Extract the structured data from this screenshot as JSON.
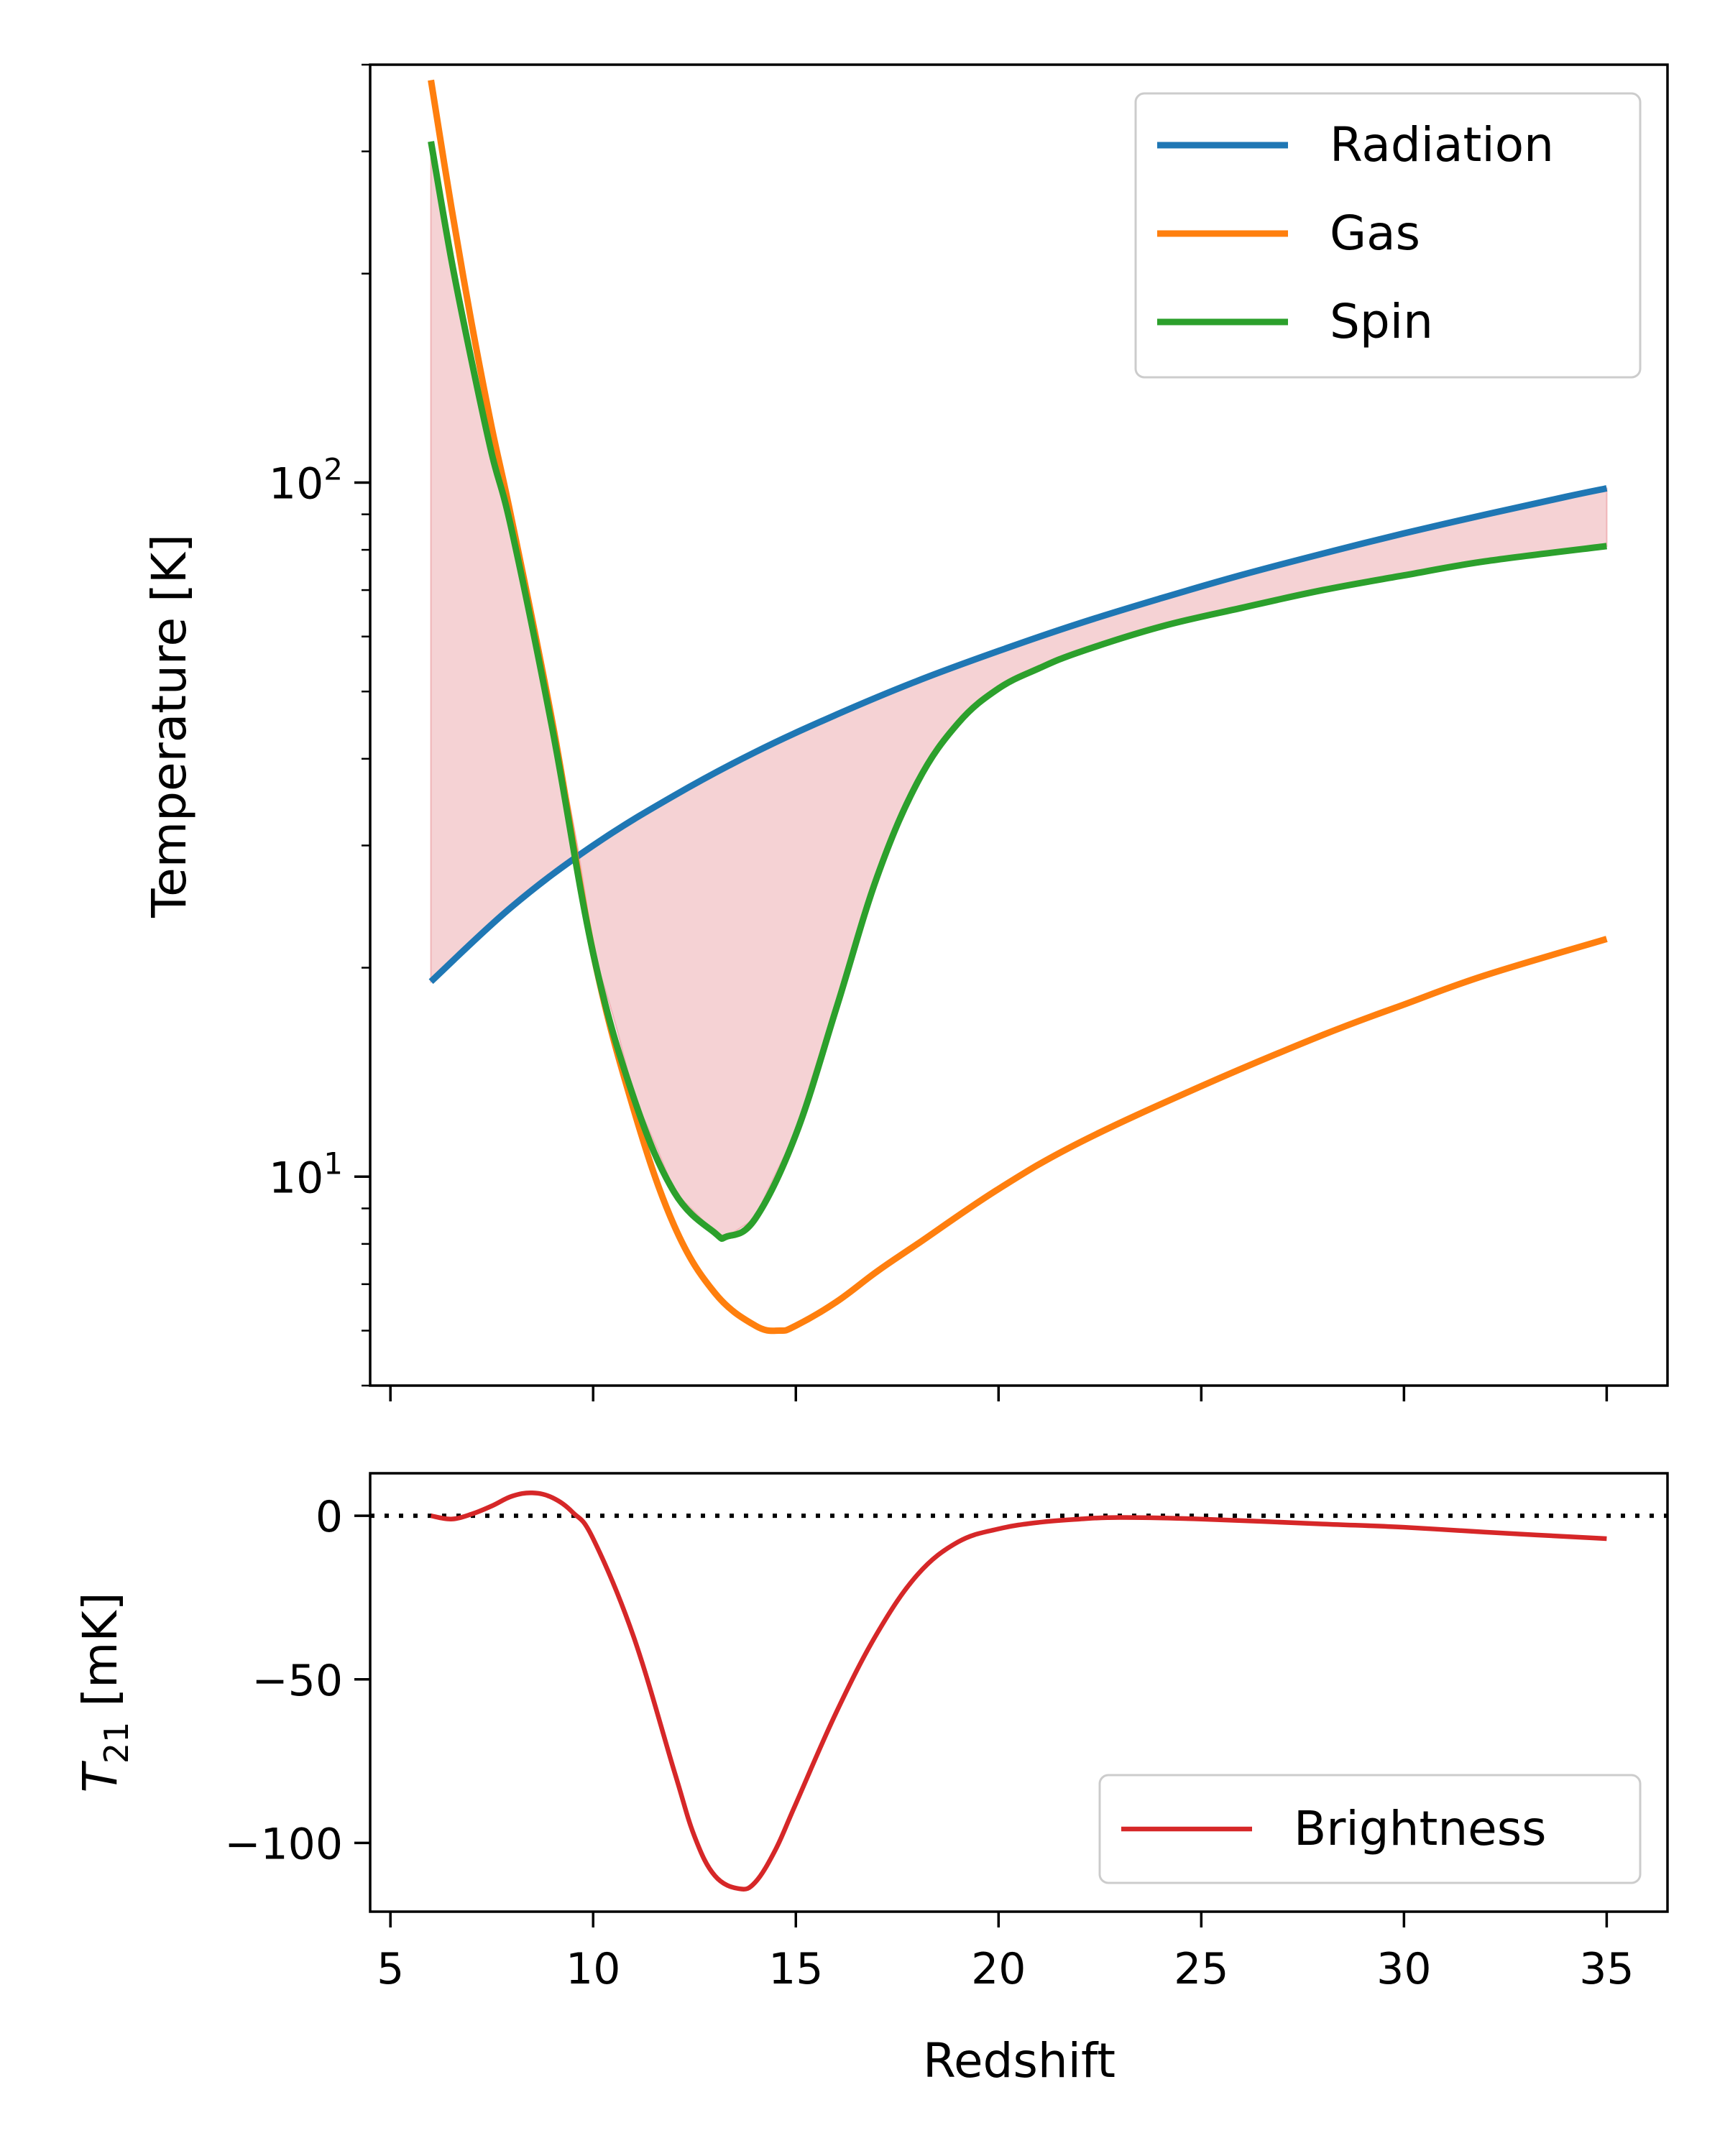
{
  "chart_data": [
    {
      "type": "line",
      "xlabel": "",
      "ylabel": "Temperature [K]",
      "yscale": "log",
      "xlim": [
        4.5,
        36.5
      ],
      "ylim": [
        5,
        400
      ],
      "yticks": [
        {
          "value": 10,
          "base": "10",
          "exp": "1"
        },
        {
          "value": 100,
          "base": "10",
          "exp": "2"
        }
      ],
      "grid": false,
      "legend_position": "upper-right",
      "shaded_region": {
        "between": [
          "Radiation",
          "Spin"
        ],
        "color": "#f5d2d4"
      },
      "series": [
        {
          "name": "Radiation",
          "color": "#1f77b4",
          "x": [
            6,
            8,
            10,
            12,
            14,
            16,
            18,
            20,
            22,
            24,
            26,
            28,
            30,
            32,
            34,
            35
          ],
          "y": [
            19.1,
            24.5,
            30.0,
            35.4,
            40.9,
            46.3,
            51.8,
            57.2,
            62.7,
            68.1,
            73.6,
            79.0,
            84.5,
            89.9,
            95.4,
            98.1
          ]
        },
        {
          "name": "Gas",
          "color": "#ff7f0e",
          "x": [
            6,
            6.5,
            7,
            7.5,
            8,
            9,
            10,
            11,
            12,
            13,
            14,
            14.6,
            15,
            16,
            17,
            18,
            20,
            22,
            25,
            28,
            30,
            32,
            35
          ],
          "y": [
            380,
            250,
            170,
            120,
            88,
            45,
            21,
            12.5,
            8.5,
            6.8,
            6.1,
            6.0,
            6.1,
            6.6,
            7.3,
            8.0,
            9.6,
            11.2,
            13.5,
            16.0,
            17.7,
            19.5,
            22.0
          ]
        },
        {
          "name": "Spin",
          "color": "#2ca02c",
          "x": [
            6,
            6.5,
            7,
            7.5,
            8,
            9,
            10,
            11,
            12,
            13,
            13.3,
            14,
            15,
            16,
            17,
            18,
            19,
            20,
            21,
            22,
            24,
            26,
            28,
            30,
            32,
            35
          ],
          "y": [
            310,
            210,
            150,
            110,
            85,
            44,
            21,
            13,
            9.5,
            8.3,
            8.2,
            8.7,
            11.5,
            17.5,
            27,
            37,
            45,
            50.5,
            54,
            57,
            62,
            66,
            70,
            73.5,
            77,
            81
          ]
        }
      ]
    },
    {
      "type": "line",
      "xlabel": "Redshift",
      "ylabel": "T21 [mK]",
      "ylabel_main": "T",
      "ylabel_sub": "21",
      "ylabel_unit": " [mK]",
      "xlim": [
        4.5,
        36.5
      ],
      "ylim": [
        -121,
        13
      ],
      "xticks": [
        5,
        10,
        15,
        20,
        25,
        30,
        35
      ],
      "yticks": [
        0,
        -50,
        -100
      ],
      "ytick_labels": [
        "0",
        "−50",
        "−100"
      ],
      "grid": false,
      "legend_position": "lower-right",
      "reference_line": {
        "y": 0,
        "style": "dotted",
        "color": "#000000"
      },
      "series": [
        {
          "name": "Brightness",
          "color": "#d62728",
          "x": [
            6,
            6.5,
            7,
            7.5,
            8,
            8.5,
            9,
            9.5,
            10,
            11,
            12,
            12.5,
            13,
            13.6,
            14,
            14.5,
            15,
            16,
            17,
            18,
            19,
            20,
            21,
            22,
            23,
            25,
            28,
            30,
            32,
            35
          ],
          "y": [
            0,
            -1,
            0.5,
            3,
            6,
            7,
            5.5,
            1,
            -7,
            -37,
            -78,
            -98,
            -110,
            -114,
            -112,
            -102,
            -88,
            -60,
            -36,
            -18,
            -8,
            -4,
            -2,
            -1,
            -0.5,
            -1,
            -2.5,
            -3.5,
            -5,
            -7
          ]
        }
      ]
    }
  ]
}
